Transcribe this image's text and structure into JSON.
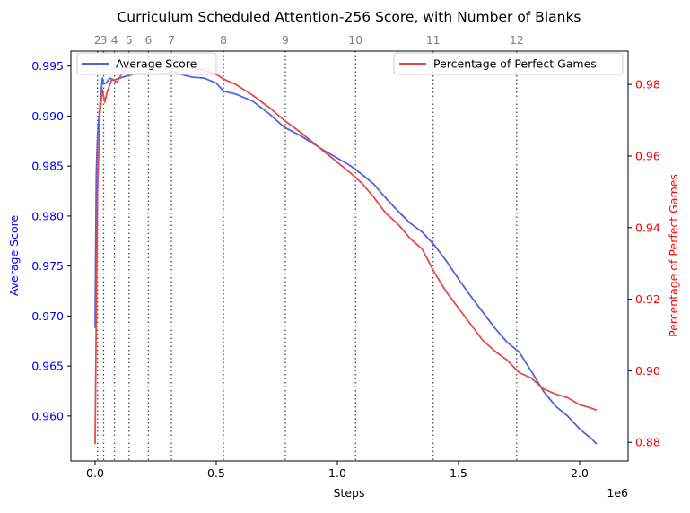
{
  "chart_data": {
    "type": "line",
    "title": "Curriculum Scheduled Attention-256 Score, with Number of Blanks",
    "xlabel": "Steps",
    "x_scale_label": "1e6",
    "x_unit_scale": 1000000,
    "xlim": [
      -0.1,
      2.2
    ],
    "xticks": [
      0.0,
      0.5,
      1.0,
      1.5,
      2.0
    ],
    "xtick_labels": [
      "0.0",
      "0.5",
      "1.0",
      "1.5",
      "2.0"
    ],
    "left_axis": {
      "label": "Average Score",
      "color": "#0000ff",
      "ylim": [
        0.9555,
        0.9965
      ],
      "ticks": [
        0.96,
        0.965,
        0.97,
        0.975,
        0.98,
        0.985,
        0.99,
        0.995
      ],
      "tick_labels": [
        "0.960",
        "0.965",
        "0.970",
        "0.975",
        "0.980",
        "0.985",
        "0.990",
        "0.995"
      ]
    },
    "right_axis": {
      "label": "Percentage of Perfect Games",
      "color": "#ff0000",
      "ylim": [
        0.8748,
        0.9893
      ],
      "ticks": [
        0.88,
        0.9,
        0.92,
        0.94,
        0.96,
        0.98
      ],
      "tick_labels": [
        "0.88",
        "0.90",
        "0.92",
        "0.94",
        "0.96",
        "0.98"
      ]
    },
    "legend_left": {
      "placement": "top-left",
      "label": "Average Score",
      "color": "#4e63e0"
    },
    "legend_right": {
      "placement": "top-right",
      "label": "Percentage of Perfect Games",
      "color": "#e84a4a"
    },
    "blank_markers": [
      {
        "label": "2",
        "x": 0.01
      },
      {
        "label": "3",
        "x": 0.035
      },
      {
        "label": "4",
        "x": 0.08
      },
      {
        "label": "5",
        "x": 0.14
      },
      {
        "label": "6",
        "x": 0.22
      },
      {
        "label": "7",
        "x": 0.315
      },
      {
        "label": "8",
        "x": 0.53
      },
      {
        "label": "9",
        "x": 0.785
      },
      {
        "label": "10",
        "x": 1.075
      },
      {
        "label": "11",
        "x": 1.395
      },
      {
        "label": "12",
        "x": 1.74
      }
    ],
    "series": [
      {
        "name": "Average Score",
        "axis": "left",
        "color": "#4e63e0",
        "x": [
          0.0,
          0.005,
          0.01,
          0.02,
          0.03,
          0.035,
          0.045,
          0.06,
          0.08,
          0.1,
          0.13,
          0.16,
          0.2,
          0.25,
          0.3,
          0.32,
          0.35,
          0.4,
          0.45,
          0.5,
          0.53,
          0.58,
          0.65,
          0.72,
          0.78,
          0.85,
          0.95,
          1.05,
          1.1,
          1.15,
          1.2,
          1.25,
          1.3,
          1.35,
          1.4,
          1.45,
          1.5,
          1.55,
          1.6,
          1.65,
          1.7,
          1.75,
          1.8,
          1.85,
          1.9,
          1.95,
          2.0,
          2.05,
          2.07
        ],
        "y": [
          0.9688,
          0.984,
          0.988,
          0.991,
          0.9938,
          0.9932,
          0.9933,
          0.9938,
          0.9936,
          0.9938,
          0.994,
          0.9942,
          0.9943,
          0.9942,
          0.9943,
          0.9945,
          0.9942,
          0.9939,
          0.9938,
          0.9933,
          0.9925,
          0.9922,
          0.9915,
          0.9902,
          0.9889,
          0.988,
          0.9865,
          0.9851,
          0.9842,
          0.9832,
          0.9818,
          0.9805,
          0.9793,
          0.9784,
          0.9771,
          0.9755,
          0.9737,
          0.972,
          0.9704,
          0.9688,
          0.9674,
          0.9664,
          0.9645,
          0.9625,
          0.961,
          0.96,
          0.9587,
          0.9577,
          0.9572
        ]
      },
      {
        "name": "Percentage of Perfect Games",
        "axis": "right",
        "color": "#e84a4a",
        "x": [
          0.0,
          0.005,
          0.01,
          0.02,
          0.03,
          0.04,
          0.05,
          0.07,
          0.09,
          0.11,
          0.14,
          0.17,
          0.2,
          0.23,
          0.26,
          0.3,
          0.32,
          0.36,
          0.4,
          0.45,
          0.5,
          0.53,
          0.58,
          0.65,
          0.72,
          0.78,
          0.85,
          0.95,
          1.05,
          1.1,
          1.15,
          1.2,
          1.25,
          1.3,
          1.35,
          1.4,
          1.45,
          1.5,
          1.55,
          1.6,
          1.65,
          1.7,
          1.75,
          1.8,
          1.85,
          1.9,
          1.95,
          2.0,
          2.05,
          2.07
        ],
        "y": [
          0.8795,
          0.915,
          0.95,
          0.972,
          0.9785,
          0.975,
          0.978,
          0.9815,
          0.9805,
          0.983,
          0.9848,
          0.9852,
          0.9856,
          0.9855,
          0.9852,
          0.9853,
          0.9868,
          0.9862,
          0.9845,
          0.984,
          0.9828,
          0.9815,
          0.98,
          0.977,
          0.9735,
          0.97,
          0.9665,
          0.961,
          0.9555,
          0.9525,
          0.9485,
          0.944,
          0.941,
          0.937,
          0.934,
          0.9275,
          0.922,
          0.9175,
          0.913,
          0.9085,
          0.9055,
          0.903,
          0.8995,
          0.898,
          0.895,
          0.8935,
          0.8925,
          0.8905,
          0.8895,
          0.889
        ]
      }
    ]
  }
}
